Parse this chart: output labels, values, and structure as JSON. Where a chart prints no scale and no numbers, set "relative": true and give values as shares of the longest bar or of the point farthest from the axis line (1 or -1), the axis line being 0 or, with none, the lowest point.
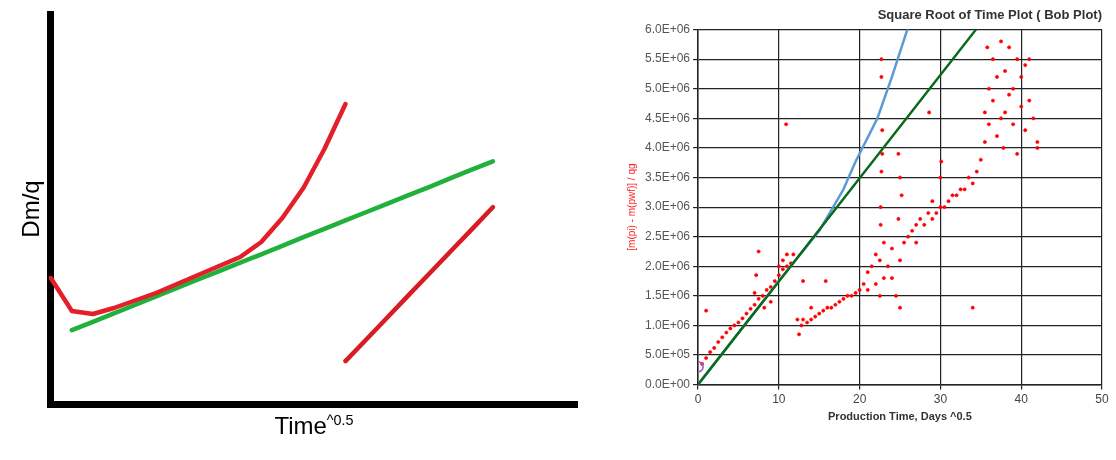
{
  "chart_data": [
    {
      "type": "line",
      "relative": true,
      "ylabel": "Dm/q",
      "xlabel": "Time$^{^0.5}$",
      "tick_labels": false,
      "grid": false,
      "legend": false,
      "marker": "none",
      "categories": [
        null,
        null,
        null,
        null,
        null,
        null,
        null,
        null,
        null,
        null,
        null,
        null,
        null,
        null,
        null,
        null,
        null,
        null,
        null,
        null,
        null,
        null,
        null,
        null,
        null,
        null
      ],
      "series": [
        {
          "color": "#22b03c",
          "values": [
            null,
            0.246,
            0.274,
            0.302,
            0.33,
            0.359,
            0.387,
            0.415,
            0.443,
            0.471,
            0.499,
            0.527,
            0.556,
            0.584,
            0.612,
            0.64,
            0.668,
            0.696,
            0.724,
            0.753,
            0.781,
            0.809,
            null,
            null,
            null,
            null
          ]
        },
        {
          "color": "#e3202a",
          "values": [
            0.42,
            0.31,
            0.3,
            0.32,
            0.345,
            0.37,
            0.4,
            0.43,
            0.46,
            0.49,
            0.54,
            0.62,
            0.72,
            0.85,
            1.0,
            null,
            null,
            null,
            null,
            null,
            null,
            null,
            null,
            null,
            null,
            null
          ]
        },
        {
          "color": "#d81c24",
          "values": [
            null,
            null,
            null,
            null,
            null,
            null,
            null,
            null,
            null,
            null,
            null,
            null,
            null,
            null,
            0.143,
            0.216,
            0.289,
            0.363,
            0.436,
            0.509,
            0.582,
            0.656,
            null,
            null,
            null,
            null
          ]
        }
      ]
    },
    {
      "type": "scatter",
      "title": "Square Root of Time Plot ( Bob Plot)",
      "xlabel": "Production Time, Days ^0.5",
      "ylabel": "[m(pi) - m(pwf)] / qg",
      "grid": true,
      "legend": false,
      "xlim": [
        0,
        50
      ],
      "xticks": [
        0,
        10,
        20,
        30,
        40,
        50
      ],
      "ylim": [
        0,
        6000000
      ],
      "yticks": [
        {
          "value": 0,
          "label": "0.0E+00"
        },
        {
          "value": 500000,
          "label": "5.0E+05"
        },
        {
          "value": 1000000,
          "label": "1.0E+06"
        },
        {
          "value": 1500000,
          "label": "1.5E+06"
        },
        {
          "value": 2000000,
          "label": "2.0E+06"
        },
        {
          "value": 2500000,
          "label": "2.5E+06"
        },
        {
          "value": 3000000,
          "label": "3.0E+06"
        },
        {
          "value": 3500000,
          "label": "3.5E+06"
        },
        {
          "value": 4000000,
          "label": "4.0E+06"
        },
        {
          "value": 4500000,
          "label": "4.5E+06"
        },
        {
          "value": 5000000,
          "label": "5.0E+06"
        },
        {
          "value": 5500000,
          "label": "5.5E+06"
        },
        {
          "value": 6000000,
          "label": "6.0E+06"
        }
      ],
      "series": [
        {
          "type": "scatter",
          "color": "#ff0000",
          "marker": "circle",
          "x": [
            0.5,
            1,
            1.5,
            2,
            2.5,
            3,
            3.5,
            4,
            4.5,
            5,
            5.5,
            6,
            6.5,
            7,
            7,
            7.2,
            7.5,
            7.5,
            8,
            8.2,
            8.5,
            9,
            9,
            9.5,
            10,
            10,
            10.5,
            10.5,
            11,
            11,
            11.5,
            11.8,
            1,
            10.9,
            12.3,
            12.5,
            12.8,
            13,
            13,
            13.5,
            14,
            14,
            14.5,
            15,
            15.5,
            15.8,
            16,
            16.5,
            17,
            17.5,
            18,
            18.5,
            19,
            19.5,
            20,
            20.5,
            21,
            21,
            21.5,
            22,
            22,
            22.5,
            22.5,
            23,
            23,
            23.5,
            24,
            24,
            24.5,
            25,
            25,
            25.5,
            26,
            26.5,
            27,
            27,
            27.5,
            28,
            28.5,
            29,
            29,
            29.5,
            30,
            30.5,
            31,
            31.5,
            32,
            32.5,
            33,
            33.5,
            34,
            34.5,
            34,
            22.7,
            22.7,
            22.8,
            22.8,
            22.7,
            22.6,
            22.6,
            24.8,
            25,
            25.2,
            24.8,
            28.6,
            30.1,
            30,
            35,
            35.5,
            35.5,
            36,
            36,
            36.5,
            36.5,
            37,
            37,
            37.5,
            37.5,
            38,
            38,
            38.5,
            38.5,
            39,
            39,
            39.5,
            39.5,
            40,
            40,
            40.5,
            40.5,
            41,
            41,
            41.5,
            42,
            42,
            35.8,
            37.8
          ],
          "values": [
            350000,
            450000,
            550000,
            620000,
            720000,
            800000,
            880000,
            950000,
            1000000,
            1050000,
            1120000,
            1200000,
            1280000,
            1350000,
            1550000,
            1850000,
            2250000,
            1450000,
            1500000,
            1300000,
            1600000,
            1650000,
            1400000,
            1750000,
            1850000,
            2000000,
            1950000,
            2100000,
            2000000,
            2200000,
            2050000,
            2200000,
            1250000,
            4400000,
            1100000,
            850000,
            1000000,
            1100000,
            1750000,
            1050000,
            1100000,
            1300000,
            1150000,
            1200000,
            1250000,
            1750000,
            1300000,
            1300000,
            1350000,
            1400000,
            1450000,
            1500000,
            1500000,
            1550000,
            1600000,
            1700000,
            1900000,
            1600000,
            2000000,
            2200000,
            1700000,
            2100000,
            1500000,
            1800000,
            2400000,
            2000000,
            1800000,
            2300000,
            1500000,
            1300000,
            2100000,
            2400000,
            2500000,
            2600000,
            2700000,
            2400000,
            2800000,
            2700000,
            2900000,
            2800000,
            3100000,
            2900000,
            3000000,
            3000000,
            3100000,
            3200000,
            3200000,
            3300000,
            3300000,
            3500000,
            3400000,
            3600000,
            1300000,
            5500000,
            5200000,
            4300000,
            3900000,
            3600000,
            3000000,
            2700000,
            3900000,
            3500000,
            3200000,
            2800000,
            4600000,
            3770000,
            3500000,
            3800000,
            4100000,
            4600000,
            4400000,
            5000000,
            4800000,
            5500000,
            4200000,
            5200000,
            4500000,
            5800000,
            4600000,
            5300000,
            4900000,
            5700000,
            4400000,
            5000000,
            5500000,
            3900000,
            4700000,
            5200000,
            4300000,
            5400000,
            4800000,
            5500000,
            4500000,
            4100000,
            4000000,
            5700000,
            4000000
          ]
        },
        {
          "type": "line",
          "color": "#5b9bd5",
          "marker": "none",
          "x": [
            0,
            10,
            15,
            18,
            19.5,
            22.2,
            24,
            25.9
          ],
          "values": [
            0,
            1750000,
            2600000,
            3300000,
            3770000,
            4500000,
            5200000,
            6000000
          ]
        },
        {
          "type": "line",
          "color": "#0b6b1d",
          "marker": "none",
          "x": [
            0,
            34.4
          ],
          "values": [
            0,
            6000000
          ]
        },
        {
          "type": "scatter",
          "color": "#9966cc",
          "marker": "circle",
          "x": [
            0
          ],
          "values": [
            300000
          ]
        }
      ]
    }
  ]
}
